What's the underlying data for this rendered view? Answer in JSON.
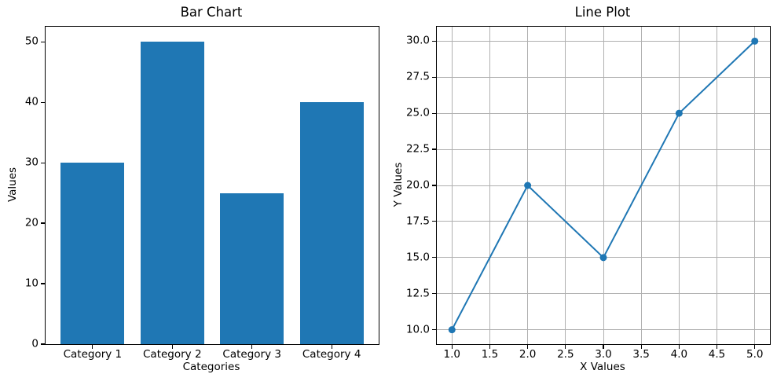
{
  "colors": {
    "accent": "#1f77b4",
    "background": "#ffffff",
    "text": "#000000",
    "grid": "#b0b0b0",
    "spine": "#000000"
  },
  "chart_data": [
    {
      "type": "bar",
      "title": "Bar Chart",
      "xlabel": "Categories",
      "ylabel": "Values",
      "categories": [
        "Category 1",
        "Category 2",
        "Category 3",
        "Category 4"
      ],
      "values": [
        30,
        50,
        25,
        40
      ],
      "bar_positions": [
        0,
        1,
        2,
        3
      ],
      "bar_width": 0.8,
      "bar_color": "#1f77b4",
      "xlim": [
        -0.59,
        3.59
      ],
      "ylim": [
        0,
        52.5
      ],
      "ytick_values": [
        0,
        10,
        20,
        30,
        40,
        50
      ],
      "ytick_labels": [
        "0",
        "10",
        "20",
        "30",
        "40",
        "50"
      ],
      "grid": false
    },
    {
      "type": "line",
      "title": "Line Plot",
      "xlabel": "X Values",
      "ylabel": "Y Values",
      "x": [
        1,
        2,
        3,
        4,
        5
      ],
      "y": [
        10,
        20,
        15,
        25,
        30
      ],
      "line_color": "#1f77b4",
      "marker": "circle",
      "xlim": [
        0.8,
        5.2
      ],
      "ylim": [
        9,
        31
      ],
      "xtick_values": [
        1.0,
        1.5,
        2.0,
        2.5,
        3.0,
        3.5,
        4.0,
        4.5,
        5.0
      ],
      "xtick_labels": [
        "1.0",
        "1.5",
        "2.0",
        "2.5",
        "3.0",
        "3.5",
        "4.0",
        "4.5",
        "5.0"
      ],
      "ytick_values": [
        10.0,
        12.5,
        15.0,
        17.5,
        20.0,
        22.5,
        25.0,
        27.5,
        30.0
      ],
      "ytick_labels": [
        "10.0",
        "12.5",
        "15.0",
        "17.5",
        "20.0",
        "22.5",
        "25.0",
        "27.5",
        "30.0"
      ],
      "grid": true,
      "grid_color": "#b0b0b0"
    }
  ]
}
